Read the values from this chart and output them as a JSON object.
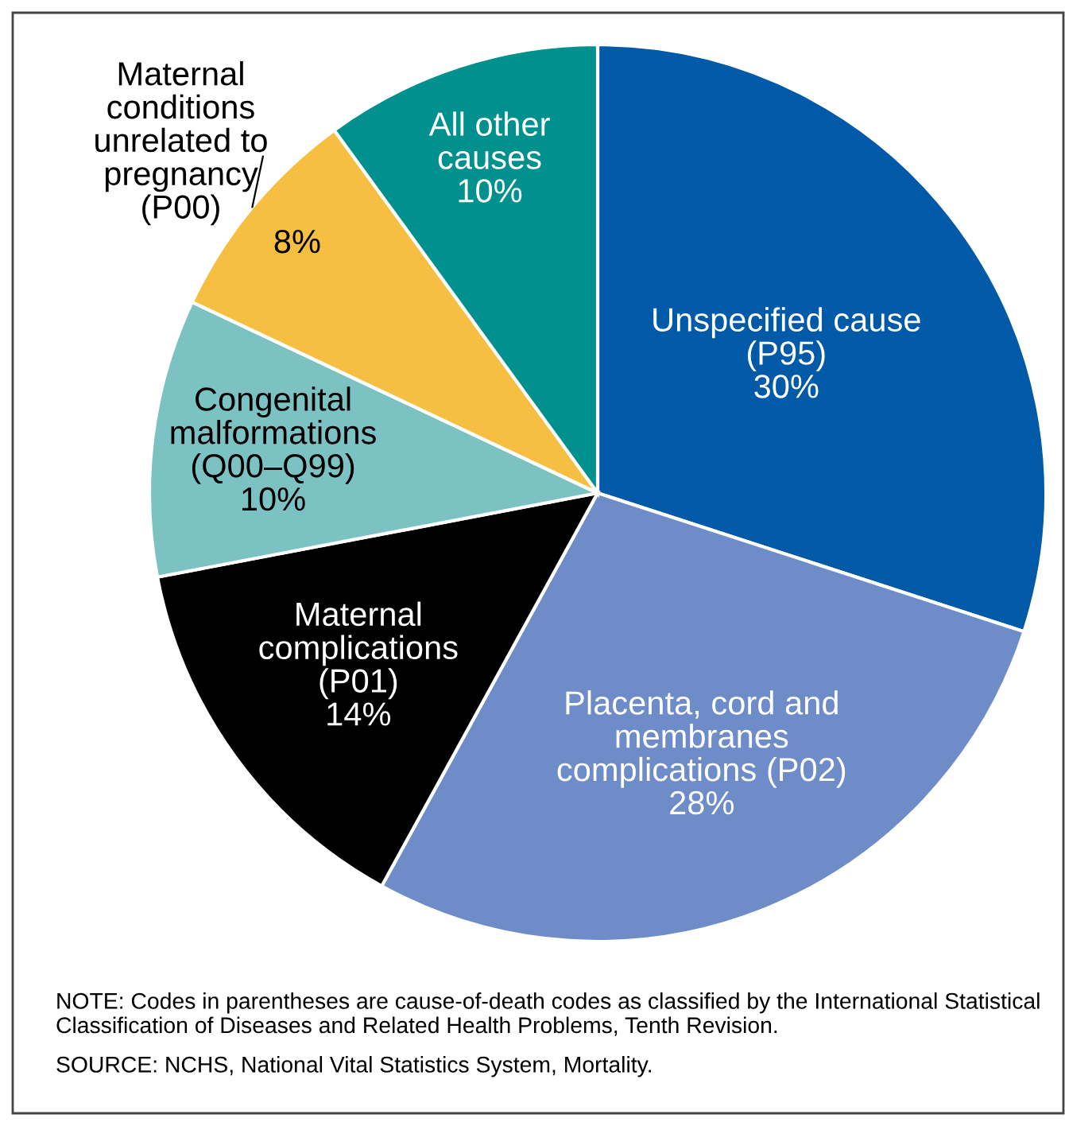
{
  "chart_data": {
    "type": "pie",
    "categories": [
      "Unspecified cause\n(P95)",
      "Placenta, cord and\nmembranes\ncomplications (P02)",
      "Maternal\ncomplications\n(P01)",
      "Congenital\nmalformations\n(Q00–Q99)",
      "Maternal\nconditions\nunrelated to\npregnancy\n(P00)",
      "All other\ncauses"
    ],
    "values": [
      30,
      28,
      14,
      10,
      8,
      10
    ],
    "colors": [
      "#005aa8",
      "#6d8cc8",
      "#000000",
      "#7cc2c2",
      "#f6bf41",
      "#00918f"
    ],
    "value_labels": [
      "30%",
      "28%",
      "14%",
      "10%",
      "8%",
      "10%"
    ],
    "annotations": [
      "NOTE: Codes in parentheses are cause-of-death codes as classified by the International Statistical Classification of Diseases and Related Health Problems, Tenth Revision.",
      "SOURCE: NCHS, National Vital Statistics System, Mortality."
    ]
  }
}
